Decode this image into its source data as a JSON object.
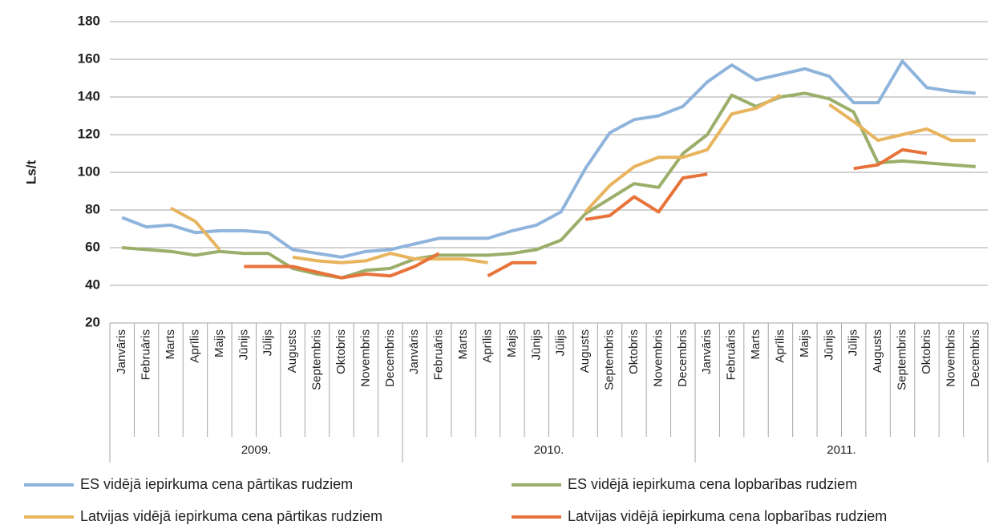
{
  "chart_data": {
    "type": "line",
    "y_label": "Ls/t",
    "categories": [
      "Janvāris",
      "Februāris",
      "Marts",
      "Aprīlis",
      "Maijs",
      "Jūnijs",
      "Jūlijs",
      "Augusts",
      "Septembris",
      "Oktobris",
      "Novembris",
      "Decembris",
      "Janvāris",
      "Februāris",
      "Marts",
      "Aprīlis",
      "Maijs",
      "Jūnijs",
      "Jūlijs",
      "Augusts",
      "Septembris",
      "Oktobris",
      "Novembris",
      "Decembris",
      "Janvāris",
      "Februāris",
      "Marts",
      "Aprīlis",
      "Maijs",
      "Jūnijs",
      "Jūlijs",
      "Augusts",
      "Septembris",
      "Oktobris",
      "Novembris",
      "Decembris"
    ],
    "years": [
      "2009.",
      "2010.",
      "2011."
    ],
    "ylim": [
      20,
      180
    ],
    "yticks": [
      20,
      40,
      60,
      80,
      100,
      120,
      140,
      160,
      180
    ],
    "grid": true,
    "legend": "bottom",
    "series": [
      {
        "name": "ES vidējā iepirkuma cena pārtikas rudziem",
        "color": "#8fb4dc",
        "values": [
          76,
          71,
          72,
          68,
          69,
          69,
          68,
          59,
          57,
          55,
          58,
          59,
          62,
          65,
          65,
          65,
          69,
          72,
          79,
          102,
          121,
          128,
          130,
          135,
          148,
          157,
          149,
          152,
          155,
          151,
          137,
          137,
          159,
          145,
          143,
          142
        ]
      },
      {
        "name": "ES vidējā iepirkuma cena lopbarības rudziem",
        "color": "#9bae6a",
        "values": [
          60,
          59,
          58,
          56,
          58,
          57,
          57,
          49,
          46,
          44,
          48,
          49,
          54,
          56,
          56,
          56,
          57,
          59,
          64,
          78,
          86,
          94,
          92,
          110,
          120,
          141,
          135,
          140,
          142,
          139,
          132,
          105,
          106,
          105,
          104,
          103
        ]
      },
      {
        "name": "Latvijas vidējā iepirkuma cena pārtikas rudziem",
        "color": "#e8b45e",
        "values": [
          null,
          null,
          81,
          74,
          59,
          null,
          null,
          55,
          53,
          52,
          53,
          57,
          54,
          54,
          54,
          52,
          null,
          null,
          null,
          79,
          93,
          103,
          108,
          108,
          112,
          131,
          134,
          141,
          null,
          136,
          127,
          117,
          120,
          123,
          117,
          117
        ]
      },
      {
        "name": "Latvijas vidējā iepirkuma cena lopbarības rudziem",
        "color": "#e8733a",
        "values": [
          null,
          null,
          null,
          null,
          null,
          50,
          50,
          50,
          47,
          44,
          46,
          45,
          50,
          57,
          null,
          45,
          52,
          52,
          null,
          75,
          77,
          87,
          79,
          97,
          99,
          null,
          null,
          null,
          null,
          null,
          102,
          104,
          112,
          110,
          null,
          null
        ]
      }
    ]
  }
}
